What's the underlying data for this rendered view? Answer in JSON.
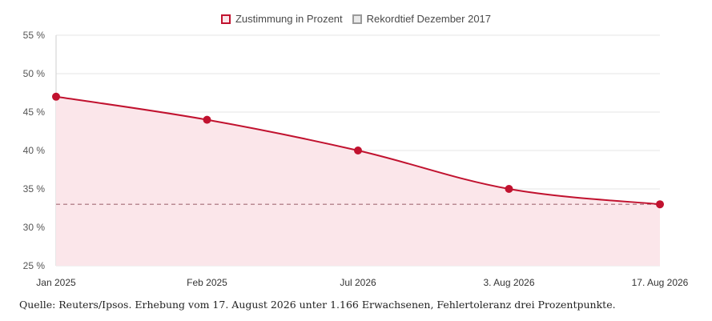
{
  "legend": {
    "series_label": "Zustimmung in Prozent",
    "reference_label": "Rekordtief Dezember 2017"
  },
  "source": "Quelle: Reuters/Ipsos. Erhebung vom 17. August 2026 unter 1.166 Erwachsenen, Fehlertoleranz drei Prozentpunkte.",
  "colors": {
    "series": "#c1122f",
    "area": "#fbe6ea",
    "reference": "#b98a93",
    "grid": "#e6e6e6"
  },
  "chart_data": {
    "type": "line",
    "categories": [
      "Jan 2025",
      "Feb 2025",
      "Jul 2026",
      "3. Aug 2026",
      "17. Aug 2026"
    ],
    "series": [
      {
        "name": "Zustimmung in Prozent",
        "values": [
          47,
          44,
          40,
          35,
          33
        ]
      }
    ],
    "reference_line": {
      "name": "Rekordtief Dezember 2017",
      "value": 33
    },
    "ylim": [
      25,
      55
    ],
    "yticks": [
      25,
      30,
      35,
      40,
      45,
      50,
      55
    ],
    "ytick_labels": [
      "25 %",
      "30 %",
      "35 %",
      "40 %",
      "45 %",
      "50 %",
      "55 %"
    ],
    "area_fill": true,
    "grid": true,
    "legend_position": "top-center"
  }
}
